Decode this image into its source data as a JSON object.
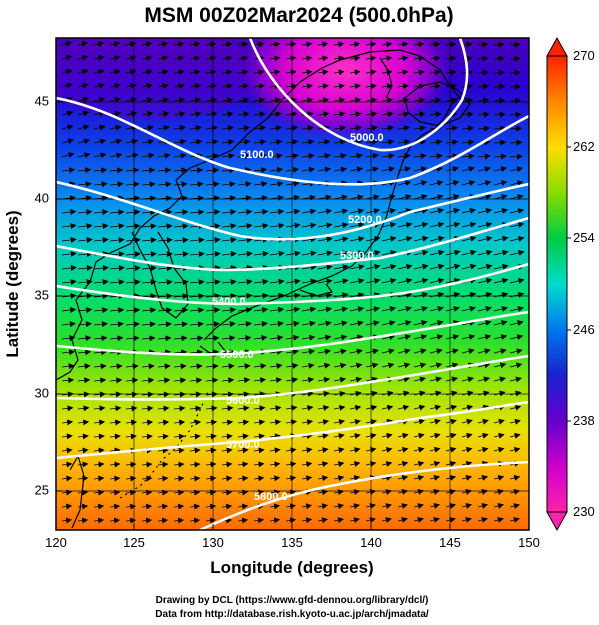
{
  "title": "MSM 00Z02Mar2024 (500.0hPa)",
  "xlabel": "Longitude (degrees)",
  "ylabel": "Latitude  (degrees)",
  "credits": [
    "Drawing by DCL (https://www.gfd-dennou.org/library/dcl/)",
    "Data from http://database.rish.kyoto-u.ac.jp/arch/jmadata/"
  ],
  "map": {
    "lon_range": [
      120,
      150
    ],
    "lat_range": [
      22.4,
      47.6
    ],
    "lon_ticks": [
      "120",
      "125",
      "130",
      "135",
      "140",
      "145",
      "150"
    ],
    "lat_ticks": [
      "25",
      "30",
      "35",
      "40",
      "45"
    ],
    "fill_variable": "temperature (K)",
    "wind_vectors": "westerly, strong in mid-latitudes",
    "contour_labels": [
      "5000.0",
      "5100.0",
      "5200.0",
      "5300.0",
      "5400.0",
      "5500.0",
      "5600.0",
      "5700.0",
      "5800.0"
    ]
  },
  "colorbar": {
    "range": [
      230,
      270
    ],
    "ticks": [
      "270",
      "262",
      "254",
      "246",
      "238",
      "230"
    ],
    "colors": [
      "#ff2200",
      "#ff8800",
      "#ffdd00",
      "#88dd00",
      "#00cc44",
      "#00ddcc",
      "#0077ee",
      "#1a22cc",
      "#6600cc",
      "#cc00cc",
      "#ff22aa"
    ]
  }
}
